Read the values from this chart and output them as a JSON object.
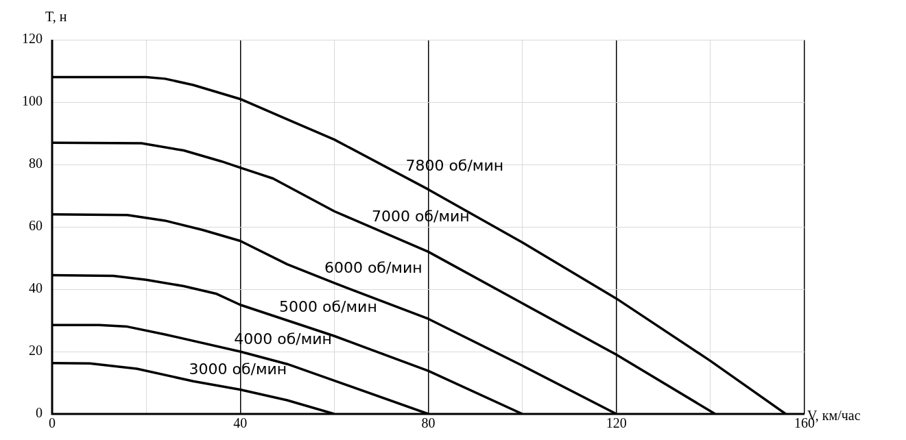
{
  "chart_data": {
    "type": "line",
    "xlabel": "V, км/час",
    "ylabel": "T, н",
    "xlim": [
      0,
      160
    ],
    "ylim": [
      0,
      120
    ],
    "xticks": [
      0,
      {
        "value": 20,
        "label": null
      },
      40,
      {
        "value": 60,
        "label": null
      },
      80,
      {
        "value": 100,
        "label": null
      },
      120,
      {
        "value": 140,
        "label": null
      },
      160
    ],
    "yticks": [
      0,
      20,
      40,
      60,
      80,
      100,
      120
    ],
    "grid": true,
    "legend": false,
    "marker": "none",
    "line_style": "solid",
    "series": [
      {
        "name": "7800 об/мин",
        "color": "#000000",
        "x": [
          0,
          10,
          20,
          24,
          30,
          40,
          50,
          60,
          80,
          100,
          120,
          140,
          156
        ],
        "values": [
          108,
          108,
          108,
          107.5,
          105.5,
          101,
          94.5,
          88,
          72,
          55,
          37,
          17,
          0
        ]
      },
      {
        "name": "7000 об/мин",
        "color": "#000000",
        "x": [
          0,
          19,
          28,
          36,
          40,
          47,
          60,
          80,
          100,
          120,
          141
        ],
        "values": [
          87,
          86.8,
          84.5,
          81,
          79,
          75.5,
          65,
          52,
          35.5,
          19,
          0
        ]
      },
      {
        "name": "6000 об/мин",
        "color": "#000000",
        "x": [
          0,
          16,
          24,
          32,
          40,
          50,
          60,
          80,
          100,
          120
        ],
        "values": [
          64,
          63.8,
          62,
          59,
          55.5,
          48,
          42,
          30.5,
          15.5,
          0
        ]
      },
      {
        "name": "5000 об/мин",
        "color": "#000000",
        "x": [
          0,
          13,
          20,
          28,
          35,
          40,
          60,
          80,
          100
        ],
        "values": [
          44.5,
          44.3,
          43,
          41,
          38.5,
          35,
          25,
          13.8,
          0
        ]
      },
      {
        "name": "4000 об/мин",
        "color": "#000000",
        "x": [
          0,
          10,
          16,
          24,
          40,
          50,
          60,
          80
        ],
        "values": [
          28.5,
          28.5,
          28,
          25.5,
          20,
          16,
          10.7,
          0
        ]
      },
      {
        "name": "3000 об/мин",
        "color": "#000000",
        "x": [
          0,
          8,
          18,
          30,
          40,
          50,
          60
        ],
        "values": [
          16.3,
          16.2,
          14.5,
          10.5,
          7.8,
          4.4,
          0
        ]
      }
    ]
  }
}
